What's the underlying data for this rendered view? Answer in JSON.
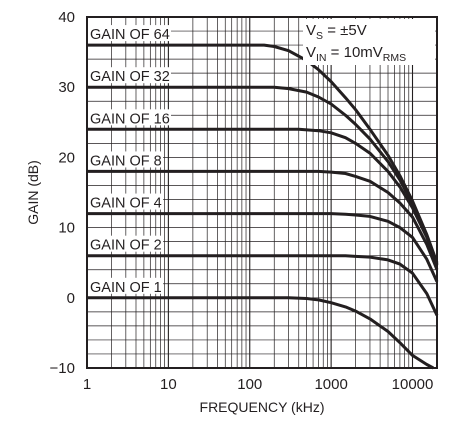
{
  "chart_data": {
    "type": "line",
    "title": "",
    "xlabel": "FREQUENCY (kHz)",
    "ylabel": "GAIN (dB)",
    "x_scale": "log",
    "xlim": [
      1,
      20000
    ],
    "ylim": [
      -10,
      40
    ],
    "x_ticks": [
      1,
      10,
      100,
      1000,
      10000
    ],
    "x_tick_labels": [
      "1",
      "10",
      "100",
      "1000",
      "10000"
    ],
    "y_ticks": [
      -10,
      0,
      10,
      20,
      30,
      40
    ],
    "y_tick_labels": [
      "−10",
      "0",
      "10",
      "20",
      "30",
      "40"
    ],
    "grid": true,
    "legend": "none",
    "annotations": {
      "vs": {
        "main": "V",
        "sub": "S",
        "rest": " = ±5V"
      },
      "vin": {
        "main": "V",
        "sub": "IN",
        "rest": " = 10mV",
        "sub2": "RMS"
      }
    },
    "series": [
      {
        "name": "GAIN OF 64",
        "x": [
          1,
          100,
          150,
          200,
          300,
          500,
          700,
          1000,
          1500,
          2000,
          3000,
          5000,
          7000,
          10000,
          15000,
          20000
        ],
        "y": [
          36,
          36,
          36,
          35.8,
          35.2,
          33.8,
          32.5,
          30.8,
          28.5,
          26.8,
          24.0,
          20.3,
          17.4,
          13.8,
          9.0,
          5.0
        ]
      },
      {
        "name": "GAIN OF 32",
        "x": [
          1,
          100,
          200,
          300,
          500,
          700,
          1000,
          1500,
          2000,
          3000,
          5000,
          7000,
          10000,
          15000,
          20000
        ],
        "y": [
          30,
          30,
          30,
          29.8,
          29.3,
          28.6,
          27.6,
          26.0,
          24.7,
          22.6,
          19.4,
          16.8,
          13.4,
          8.9,
          4.8
        ]
      },
      {
        "name": "GAIN OF 16",
        "x": [
          1,
          200,
          400,
          700,
          1000,
          1500,
          2000,
          3000,
          5000,
          7000,
          10000,
          15000,
          20000
        ],
        "y": [
          24,
          24,
          24,
          23.8,
          23.5,
          22.8,
          22.0,
          20.6,
          18.0,
          15.8,
          12.8,
          8.6,
          4.6
        ]
      },
      {
        "name": "GAIN OF 8",
        "x": [
          1,
          400,
          700,
          1000,
          1500,
          2000,
          3000,
          5000,
          7000,
          10000,
          15000,
          20000
        ],
        "y": [
          18,
          18,
          18,
          17.9,
          17.7,
          17.3,
          16.6,
          15.0,
          13.5,
          11.5,
          7.6,
          4.0
        ]
      },
      {
        "name": "GAIN OF 4",
        "x": [
          1,
          700,
          1000,
          1500,
          2000,
          3000,
          5000,
          7000,
          10000,
          15000,
          20000
        ],
        "y": [
          12,
          12,
          12,
          11.9,
          11.8,
          11.6,
          10.9,
          10.0,
          8.6,
          5.5,
          2.3
        ]
      },
      {
        "name": "GAIN OF 2",
        "x": [
          1,
          1000,
          1500,
          2000,
          3000,
          5000,
          7000,
          10000,
          15000,
          20000
        ],
        "y": [
          6,
          6,
          6,
          5.9,
          5.8,
          5.4,
          4.8,
          3.5,
          0.6,
          -2.5
        ]
      },
      {
        "name": "GAIN OF 1",
        "x": [
          1,
          300,
          500,
          700,
          1000,
          1500,
          2000,
          3000,
          5000,
          7000,
          10000,
          15000,
          18000
        ],
        "y": [
          0,
          0,
          -0.1,
          -0.3,
          -0.7,
          -1.3,
          -1.9,
          -3.0,
          -4.8,
          -6.4,
          -8.2,
          -9.5,
          -10
        ]
      }
    ]
  }
}
